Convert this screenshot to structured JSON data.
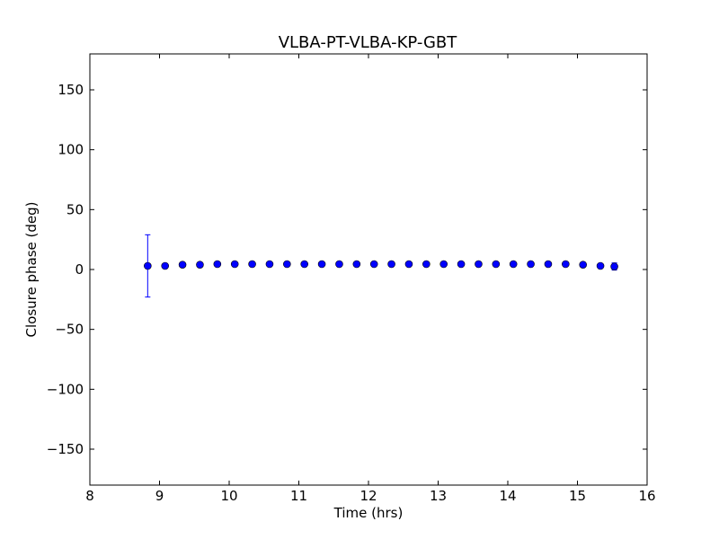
{
  "chart_data": {
    "type": "scatter",
    "title": "VLBA-PT-VLBA-KP-GBT",
    "xlabel": "Time (hrs)",
    "ylabel": "Closure phase (deg)",
    "xlim": [
      8,
      16
    ],
    "ylim": [
      -180,
      180
    ],
    "xticks": [
      8,
      9,
      10,
      11,
      12,
      13,
      14,
      15,
      16
    ],
    "yticks": [
      -150,
      -100,
      -50,
      0,
      50,
      100,
      150
    ],
    "xtick_labels": [
      "8",
      "9",
      "10",
      "11",
      "12",
      "13",
      "14",
      "15",
      "16"
    ],
    "ytick_labels": [
      "−150",
      "−100",
      "−50",
      "0",
      "50",
      "100",
      "150"
    ],
    "grid": false,
    "colors": {
      "marker": "#0000ff",
      "errorbar": "#0000ff",
      "axes": "#000000"
    },
    "points": [
      {
        "x": 8.83,
        "y": 3,
        "yerr": 26
      },
      {
        "x": 9.08,
        "y": 3,
        "yerr": 1
      },
      {
        "x": 9.33,
        "y": 4,
        "yerr": 1
      },
      {
        "x": 9.58,
        "y": 4,
        "yerr": 1
      },
      {
        "x": 9.83,
        "y": 4.5,
        "yerr": 1
      },
      {
        "x": 10.08,
        "y": 4.5,
        "yerr": 1
      },
      {
        "x": 10.33,
        "y": 4.5,
        "yerr": 1
      },
      {
        "x": 10.58,
        "y": 4.5,
        "yerr": 1
      },
      {
        "x": 10.83,
        "y": 4.5,
        "yerr": 1
      },
      {
        "x": 11.08,
        "y": 4.5,
        "yerr": 1
      },
      {
        "x": 11.33,
        "y": 4.5,
        "yerr": 1
      },
      {
        "x": 11.58,
        "y": 4.5,
        "yerr": 1
      },
      {
        "x": 11.83,
        "y": 4.5,
        "yerr": 1
      },
      {
        "x": 12.08,
        "y": 4.5,
        "yerr": 1
      },
      {
        "x": 12.33,
        "y": 4.5,
        "yerr": 1
      },
      {
        "x": 12.58,
        "y": 4.5,
        "yerr": 1
      },
      {
        "x": 12.83,
        "y": 4.5,
        "yerr": 1
      },
      {
        "x": 13.08,
        "y": 4.5,
        "yerr": 1
      },
      {
        "x": 13.33,
        "y": 4.5,
        "yerr": 1
      },
      {
        "x": 13.58,
        "y": 4.5,
        "yerr": 1
      },
      {
        "x": 13.83,
        "y": 4.5,
        "yerr": 1
      },
      {
        "x": 14.08,
        "y": 4.5,
        "yerr": 1
      },
      {
        "x": 14.33,
        "y": 4.5,
        "yerr": 1
      },
      {
        "x": 14.58,
        "y": 4.5,
        "yerr": 1
      },
      {
        "x": 14.83,
        "y": 4.5,
        "yerr": 1
      },
      {
        "x": 15.08,
        "y": 4,
        "yerr": 1
      },
      {
        "x": 15.33,
        "y": 3,
        "yerr": 1.5
      },
      {
        "x": 15.53,
        "y": 2.5,
        "yerr": 3
      }
    ]
  }
}
